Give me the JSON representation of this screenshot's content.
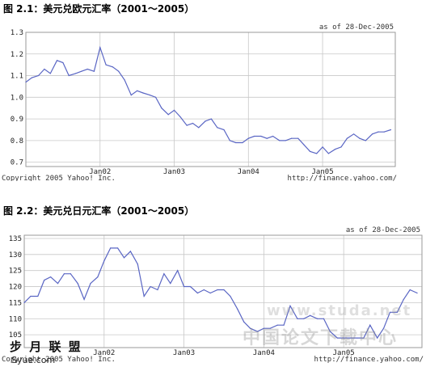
{
  "chart_data": [
    {
      "type": "line",
      "title": "图 2.1：美元兑欧元汇率（2001～2005）",
      "asof": "as of 28-Dec-2005",
      "credit_left": "Copyright 2005 Yahoo! Inc.",
      "credit_right": "http://finance.yahoo.com/",
      "ylim": [
        0.68,
        1.3
      ],
      "y_ticks": [
        "1.3",
        "1.2",
        "1.1",
        "1.0",
        "0.9",
        "0.8",
        "0.7"
      ],
      "y_tick_values": [
        1.3,
        1.2,
        1.1,
        1.0,
        0.9,
        0.8,
        0.7
      ],
      "x_ticks": [
        "Jan02",
        "Jan03",
        "Jan04",
        "Jan05"
      ],
      "x_tick_values": [
        2002,
        2003,
        2004,
        2005
      ],
      "xlim": [
        2001.0,
        2005.98
      ],
      "series": [
        {
          "x": [
            2001.0,
            2001.08,
            2001.17,
            2001.25,
            2001.33,
            2001.42,
            2001.5,
            2001.58,
            2001.67,
            2001.75,
            2001.83,
            2001.92,
            2002.0,
            2002.08,
            2002.17,
            2002.25,
            2002.33,
            2002.42,
            2002.5,
            2002.58,
            2002.67,
            2002.75,
            2002.83,
            2002.92,
            2003.0,
            2003.08,
            2003.17,
            2003.25,
            2003.33,
            2003.42,
            2003.5,
            2003.58,
            2003.67,
            2003.75,
            2003.83,
            2003.92,
            2004.0,
            2004.08,
            2004.17,
            2004.25,
            2004.33,
            2004.42,
            2004.5,
            2004.58,
            2004.67,
            2004.75,
            2004.83,
            2004.92,
            2005.0,
            2005.08,
            2005.17,
            2005.25,
            2005.33,
            2005.42,
            2005.5,
            2005.58,
            2005.67,
            2005.75,
            2005.83,
            2005.92
          ],
          "y": [
            1.07,
            1.09,
            1.1,
            1.13,
            1.11,
            1.17,
            1.16,
            1.1,
            1.11,
            1.12,
            1.13,
            1.12,
            1.23,
            1.15,
            1.14,
            1.12,
            1.08,
            1.01,
            1.03,
            1.02,
            1.01,
            1.0,
            0.95,
            0.92,
            0.94,
            0.91,
            0.87,
            0.88,
            0.86,
            0.89,
            0.9,
            0.86,
            0.85,
            0.8,
            0.79,
            0.79,
            0.81,
            0.82,
            0.82,
            0.81,
            0.82,
            0.8,
            0.8,
            0.81,
            0.81,
            0.78,
            0.75,
            0.74,
            0.77,
            0.74,
            0.76,
            0.77,
            0.81,
            0.83,
            0.81,
            0.8,
            0.83,
            0.84,
            0.84,
            0.85
          ]
        }
      ]
    },
    {
      "type": "line",
      "title": "图 2.2：美元兑日元汇率（2001～2005）",
      "asof": "as of 28-Dec-2005",
      "credit_left": "Copyright 2005 Yahoo! Inc.",
      "credit_right": "http://finance.yahoo.com/",
      "ylim": [
        101,
        136
      ],
      "y_ticks": [
        "135",
        "130",
        "125",
        "120",
        "115",
        "110",
        "105"
      ],
      "y_tick_values": [
        135,
        130,
        125,
        120,
        115,
        110,
        105
      ],
      "x_ticks": [
        "Jan02",
        "Jan03",
        "Jan04",
        "Jan05"
      ],
      "x_tick_values": [
        2002,
        2003,
        2004,
        2005
      ],
      "xlim": [
        2001.0,
        2005.98
      ],
      "series": [
        {
          "x": [
            2001.0,
            2001.08,
            2001.17,
            2001.25,
            2001.33,
            2001.42,
            2001.5,
            2001.58,
            2001.67,
            2001.75,
            2001.83,
            2001.92,
            2002.0,
            2002.08,
            2002.17,
            2002.25,
            2002.33,
            2002.42,
            2002.5,
            2002.58,
            2002.67,
            2002.75,
            2002.83,
            2002.92,
            2003.0,
            2003.08,
            2003.17,
            2003.25,
            2003.33,
            2003.42,
            2003.5,
            2003.58,
            2003.67,
            2003.75,
            2003.83,
            2003.92,
            2004.0,
            2004.08,
            2004.17,
            2004.25,
            2004.33,
            2004.42,
            2004.5,
            2004.58,
            2004.67,
            2004.75,
            2004.83,
            2004.92,
            2005.0,
            2005.08,
            2005.17,
            2005.25,
            2005.33,
            2005.42,
            2005.5,
            2005.58,
            2005.67,
            2005.75,
            2005.83,
            2005.92
          ],
          "y": [
            115,
            117,
            117,
            122,
            123,
            121,
            124,
            124,
            121,
            116,
            121,
            123,
            128,
            132,
            132,
            129,
            131,
            127,
            117,
            120,
            119,
            124,
            121,
            125,
            120,
            120,
            118,
            119,
            118,
            119,
            119,
            117,
            113,
            109,
            107,
            106,
            107,
            107,
            108,
            108,
            114,
            110,
            110,
            111,
            110,
            110,
            106,
            104,
            104,
            104,
            104,
            104,
            108,
            104,
            107,
            112,
            112,
            116,
            119,
            118
          ]
        }
      ]
    }
  ],
  "watermark": {
    "brand_small": "步 月 联 盟",
    "brand_url": "Syue.com",
    "brand_big": "中国论文下载中心",
    "site": "www.studa.net"
  }
}
